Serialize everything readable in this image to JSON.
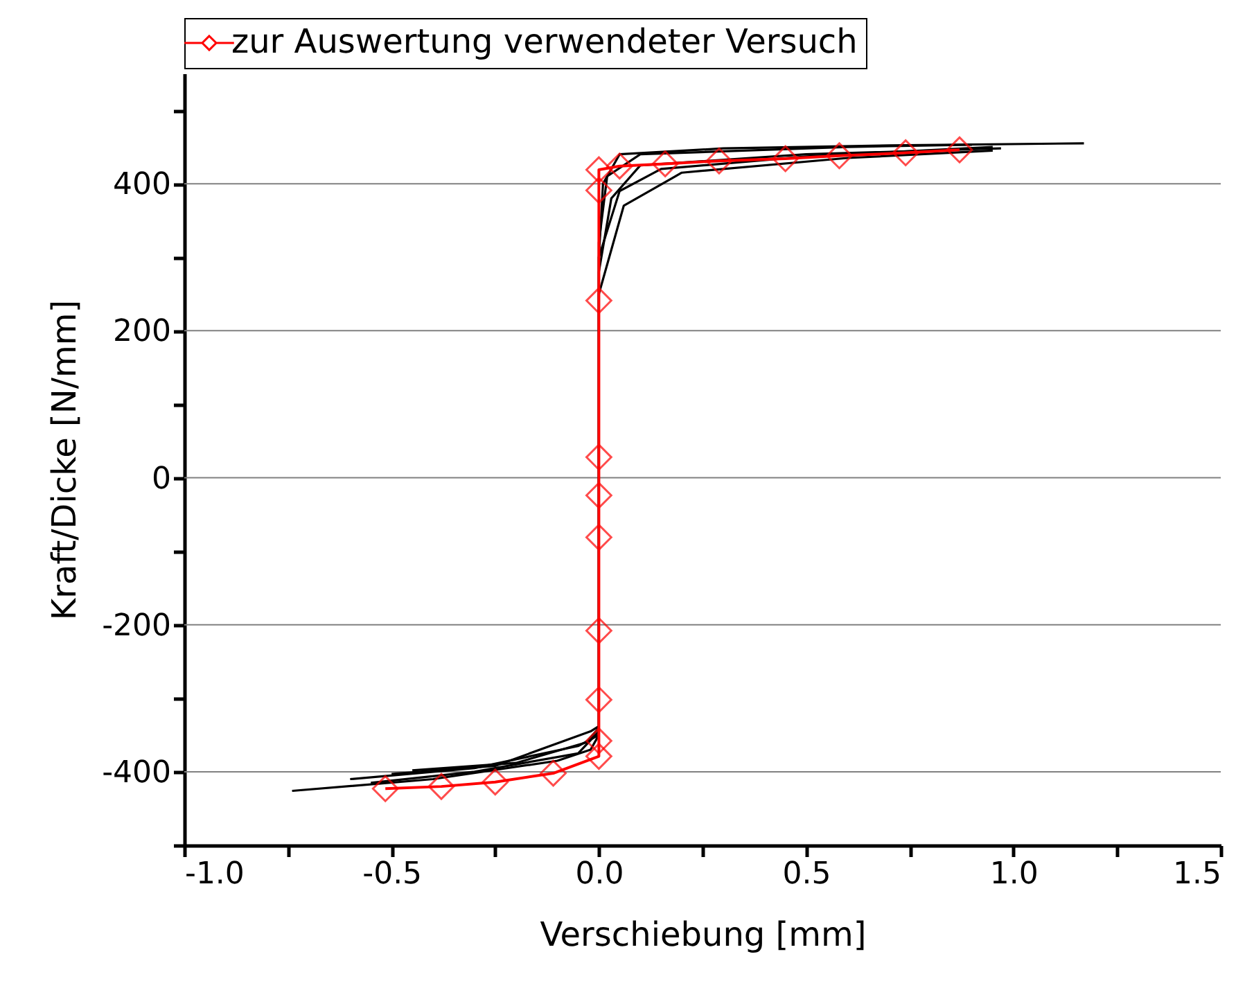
{
  "chart_data": {
    "type": "line",
    "xlabel": "Verschiebung [mm]",
    "ylabel": "Kraft/Dicke [N/mm]",
    "xlim": [
      -1.0,
      1.5
    ],
    "ylim": [
      -500,
      550
    ],
    "xticks": [
      {
        "value": -1.0,
        "label": "-1.0"
      },
      {
        "value": -0.75,
        "label": null
      },
      {
        "value": -0.5,
        "label": "-0.5"
      },
      {
        "value": -0.25,
        "label": null
      },
      {
        "value": 0,
        "label": "0.0"
      },
      {
        "value": 0.25,
        "label": null
      },
      {
        "value": 0.5,
        "label": "0.5"
      },
      {
        "value": 0.75,
        "label": null
      },
      {
        "value": 1.0,
        "label": "1.0"
      },
      {
        "value": 1.25,
        "label": null
      },
      {
        "value": 1.5,
        "label": "1.5"
      }
    ],
    "yticks": [
      {
        "value": -500,
        "label": null
      },
      -400,
      {
        "value": -300,
        "label": null
      },
      -200,
      {
        "value": -100,
        "label": null
      },
      0,
      {
        "value": 100,
        "label": null
      },
      200,
      {
        "value": 300,
        "label": null
      },
      400,
      {
        "value": 500,
        "label": null
      }
    ],
    "grid": "y",
    "legend": "top",
    "line_style": "solid",
    "series": [
      {
        "color": "#000000",
        "marker": "none",
        "x": [
          -0.74,
          -0.4,
          -0.1,
          -0.02,
          0,
          0,
          0.01,
          0.05,
          0.3,
          0.7,
          1.17
        ],
        "values": [
          -426,
          -410,
          -385,
          -370,
          -350,
          300,
          400,
          440,
          448,
          452,
          455
        ]
      },
      {
        "color": "#000000",
        "marker": "none",
        "x": [
          -0.55,
          -0.3,
          -0.05,
          0,
          0,
          0.03,
          0.1,
          0.5,
          0.97
        ],
        "values": [
          -415,
          -400,
          -375,
          -345,
          280,
          380,
          425,
          440,
          448
        ]
      },
      {
        "color": "#000000",
        "marker": "none",
        "x": [
          -0.45,
          -0.2,
          -0.03,
          0,
          0,
          0.05,
          0.15,
          0.5,
          0.95
        ],
        "values": [
          -398,
          -388,
          -360,
          -340,
          300,
          390,
          420,
          437,
          450
        ]
      },
      {
        "color": "#000000",
        "marker": "none",
        "x": [
          -0.6,
          -0.3,
          -0.05,
          0,
          0,
          0.06,
          0.2,
          0.6,
          0.95
        ],
        "values": [
          -410,
          -395,
          -365,
          -350,
          250,
          370,
          415,
          435,
          445
        ]
      },
      {
        "color": "#000000",
        "marker": "none",
        "x": [
          -0.5,
          -0.25,
          -0.02,
          0,
          0,
          0.02,
          0.1,
          0.6,
          0.9
        ],
        "values": [
          -403,
          -392,
          -345,
          -338,
          320,
          410,
          440,
          450,
          453
        ]
      },
      {
        "name": "zur Auswertung verwendeter Versuch",
        "color": "#ff0000",
        "marker": "diamond",
        "x": [
          -0.515,
          -0.38,
          -0.25,
          -0.11,
          0.0,
          0.0,
          0.0,
          0.0,
          0.0,
          0.0,
          0.0,
          0.0,
          0.0,
          0.0,
          0.05,
          0.16,
          0.29,
          0.45,
          0.58,
          0.74,
          0.87
        ],
        "values": [
          -423,
          -420,
          -414,
          -402,
          -379,
          -358,
          -302,
          -208,
          -81,
          -24,
          28,
          241,
          391,
          419,
          424,
          427,
          431,
          434,
          438,
          442,
          446
        ]
      }
    ]
  }
}
